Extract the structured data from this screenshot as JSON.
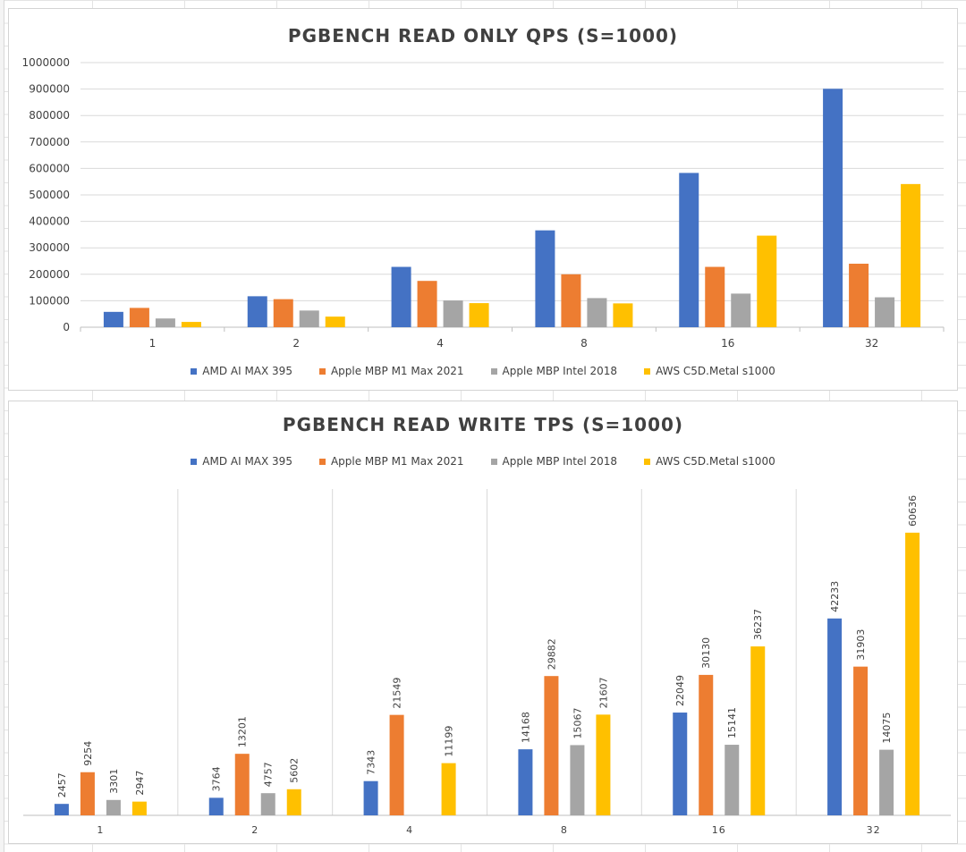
{
  "chart_data": [
    {
      "type": "bar",
      "title": "PGBENCH READ ONLY QPS (S=1000)",
      "categories": [
        "1",
        "2",
        "4",
        "8",
        "16",
        "32"
      ],
      "series": [
        {
          "name": "AMD AI MAX 395",
          "color": "#4472c4",
          "values": [
            58000,
            117000,
            228000,
            366000,
            583000,
            901000
          ]
        },
        {
          "name": "Apple MBP M1 Max 2021",
          "color": "#ed7d31",
          "values": [
            73000,
            106000,
            175000,
            200000,
            228000,
            240000
          ]
        },
        {
          "name": "Apple MBP Intel 2018",
          "color": "#a5a5a5",
          "values": [
            33000,
            63000,
            101000,
            110000,
            127000,
            113000
          ]
        },
        {
          "name": "AWS C5D.Metal s1000",
          "color": "#ffc000",
          "values": [
            20000,
            40000,
            91000,
            90000,
            346000,
            541000
          ]
        }
      ],
      "yticks": [
        "0",
        "100000",
        "200000",
        "300000",
        "400000",
        "500000",
        "600000",
        "700000",
        "800000",
        "900000",
        "1000000"
      ],
      "ylim": [
        0,
        1000000
      ],
      "grid": true,
      "legend_position": "bottom"
    },
    {
      "type": "bar",
      "title": "PGBENCH READ WRITE TPS (S=1000)",
      "categories": [
        "1",
        "2",
        "4",
        "8",
        "16",
        "32"
      ],
      "series": [
        {
          "name": "AMD AI MAX 395",
          "color": "#4472c4",
          "values": [
            2457,
            3764,
            7343,
            14168,
            22049,
            42233
          ],
          "labels": [
            "2457",
            "3764",
            "7343",
            "14168",
            "22049",
            "42233"
          ]
        },
        {
          "name": "Apple MBP M1 Max 2021",
          "color": "#ed7d31",
          "values": [
            9254,
            13201,
            21549,
            29882,
            30130,
            31903
          ],
          "labels": [
            "9254",
            "13201",
            "21549",
            "29882",
            "30130",
            "31903"
          ]
        },
        {
          "name": "Apple MBP Intel 2018",
          "color": "#a5a5a5",
          "values": [
            3301,
            4757,
            null,
            15067,
            15141,
            14075
          ],
          "labels": [
            "3301",
            "4757",
            "",
            "15067",
            "15141",
            "14075"
          ]
        },
        {
          "name": "AWS C5D.Metal s1000",
          "color": "#ffc000",
          "values": [
            2947,
            5602,
            11199,
            21607,
            36237,
            60636
          ],
          "labels": [
            "2947",
            "5602",
            "11199",
            "21607",
            "36237",
            "60636"
          ]
        }
      ],
      "ylim": [
        0,
        70000
      ],
      "grid": "vertical category separators",
      "legend_position": "top"
    }
  ]
}
